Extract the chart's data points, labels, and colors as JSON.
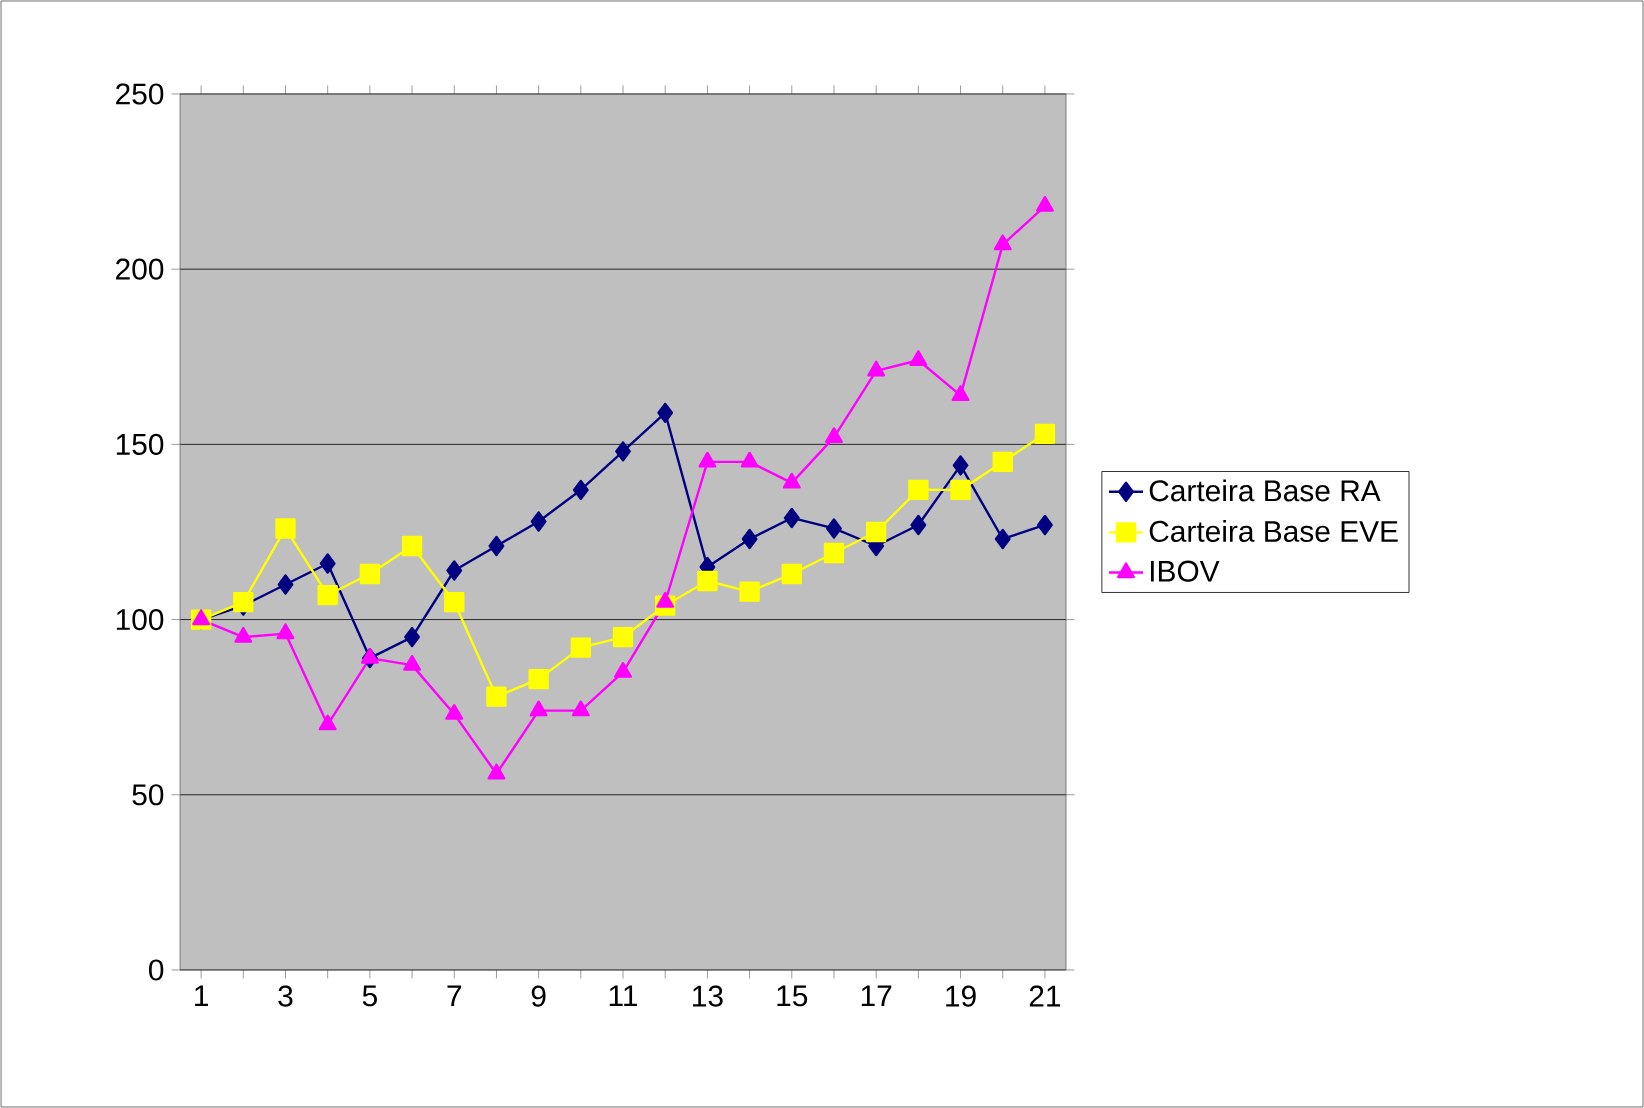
{
  "chart_data": {
    "type": "line",
    "categories": [
      "1",
      null,
      "3",
      null,
      "5",
      null,
      "7",
      null,
      "9",
      null,
      "11",
      null,
      "13",
      null,
      "15",
      null,
      "17",
      null,
      "19",
      null,
      "21"
    ],
    "series": [
      {
        "name": "Carteira Base RA",
        "color": "#000080",
        "marker": "diamond",
        "values": [
          100,
          104,
          110,
          116,
          89,
          95,
          114,
          121,
          128,
          137,
          148,
          159,
          115,
          123,
          129,
          126,
          121,
          127,
          144,
          123,
          127
        ]
      },
      {
        "name": "Carteira Base EVE",
        "color": "#ffff00",
        "marker": "square",
        "values": [
          100,
          105,
          126,
          107,
          113,
          121,
          105,
          78,
          83,
          92,
          95,
          104,
          111,
          108,
          113,
          119,
          125,
          137,
          137,
          145,
          153
        ]
      },
      {
        "name": "IBOV",
        "color": "#ff00ff",
        "marker": "triangle",
        "values": [
          100,
          95,
          96,
          70,
          89,
          87,
          73,
          56,
          74,
          74,
          85,
          105,
          145,
          145,
          139,
          152,
          171,
          174,
          164,
          207,
          218
        ]
      }
    ],
    "ylim": [
      0,
      250
    ],
    "yticks": [
      0,
      50,
      100,
      150,
      200,
      250
    ],
    "grid": "y",
    "legend": "right"
  }
}
